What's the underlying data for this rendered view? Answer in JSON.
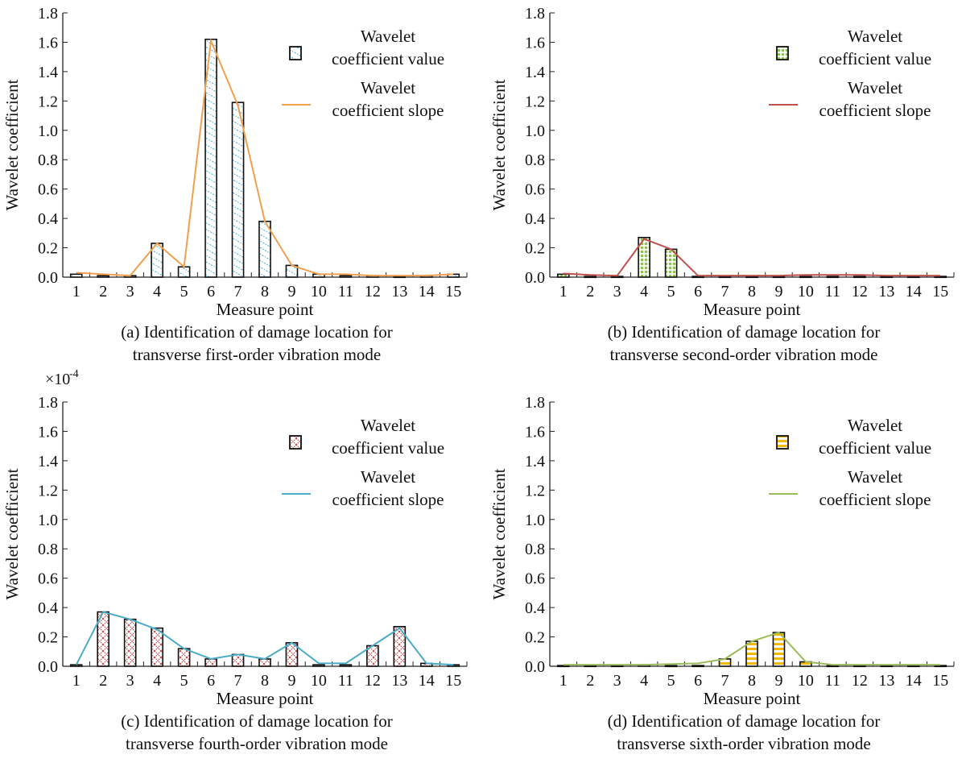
{
  "chart_data": [
    {
      "id": "a",
      "type": "bar",
      "caption_line1": "(a) Identification of damage location for",
      "caption_line2": "transverse first-order vibration mode",
      "xlabel": "Measure point",
      "ylabel": "Wavelet coefficient",
      "scale_label": "",
      "categories": [
        1,
        2,
        3,
        4,
        5,
        6,
        7,
        8,
        9,
        10,
        11,
        12,
        13,
        14,
        15
      ],
      "ylim": [
        0,
        1.8
      ],
      "yticks": [
        "0.0",
        "0.2",
        "0.4",
        "0.6",
        "0.8",
        "1.0",
        "1.2",
        "1.4",
        "1.6",
        "1.8"
      ],
      "pattern": "diagonal",
      "line_color": "#f0a050",
      "bar_accent": "#4ab0d8",
      "legend_bar": "Wavelet coefficient value",
      "legend_line": "Wavelet coefficient slope",
      "series": [
        {
          "kind": "bar",
          "values": [
            0.02,
            0.01,
            0.01,
            0.23,
            0.07,
            1.62,
            1.19,
            0.38,
            0.08,
            0.02,
            0.01,
            0.01,
            0.005,
            0.01,
            0.02
          ]
        },
        {
          "kind": "line",
          "values": [
            0.03,
            0.02,
            0.01,
            0.23,
            0.07,
            1.61,
            1.17,
            0.38,
            0.08,
            0.02,
            0.02,
            0.01,
            0.01,
            0.01,
            0.02
          ]
        }
      ]
    },
    {
      "id": "b",
      "type": "bar",
      "caption_line1": "(b) Identification of damage location for",
      "caption_line2": "transverse second-order vibration mode",
      "xlabel": "Measure point",
      "ylabel": "Wavelet coefficient",
      "scale_label": "",
      "categories": [
        1,
        2,
        3,
        4,
        5,
        6,
        7,
        8,
        9,
        10,
        11,
        12,
        13,
        14,
        15
      ],
      "ylim": [
        0,
        1.8
      ],
      "yticks": [
        "0.0",
        "0.2",
        "0.4",
        "0.6",
        "0.8",
        "1.0",
        "1.2",
        "1.4",
        "1.6",
        "1.8"
      ],
      "pattern": "dots",
      "line_color": "#c0504d",
      "bar_accent": "#8bc34a",
      "legend_bar": "Wavelet coefficient value",
      "legend_line": "Wavelet coefficient slope",
      "series": [
        {
          "kind": "bar",
          "values": [
            0.02,
            0.005,
            0.005,
            0.27,
            0.19,
            0.005,
            0.005,
            0.005,
            0.005,
            0.005,
            0.005,
            0.005,
            0.005,
            0.005,
            0.005
          ]
        },
        {
          "kind": "line",
          "values": [
            0.025,
            0.015,
            0.01,
            0.26,
            0.19,
            0.01,
            0.01,
            0.01,
            0.01,
            0.015,
            0.015,
            0.015,
            0.01,
            0.01,
            0.01
          ]
        }
      ]
    },
    {
      "id": "c",
      "type": "bar",
      "caption_line1": "(c) Identification of damage location for",
      "caption_line2": "transverse fourth-order vibration mode",
      "xlabel": "Measure point",
      "ylabel": "Wavelet coefficient",
      "scale_label": "×10",
      "scale_exp": "-4",
      "categories": [
        1,
        2,
        3,
        4,
        5,
        6,
        7,
        8,
        9,
        10,
        11,
        12,
        13,
        14,
        15
      ],
      "ylim": [
        0,
        1.8
      ],
      "yticks": [
        "0.0",
        "0.2",
        "0.4",
        "0.6",
        "0.8",
        "1.0",
        "1.2",
        "1.4",
        "1.6",
        "1.8"
      ],
      "pattern": "cross",
      "line_color": "#4bacc6",
      "bar_accent": "#c0504d",
      "legend_bar": "Wavelet coefficient value",
      "legend_line": "Wavelet coefficient slope",
      "series": [
        {
          "kind": "bar",
          "values": [
            0.01,
            0.37,
            0.32,
            0.26,
            0.12,
            0.05,
            0.08,
            0.05,
            0.16,
            0.01,
            0.01,
            0.14,
            0.27,
            0.02,
            0.01
          ]
        },
        {
          "kind": "line",
          "values": [
            0.01,
            0.37,
            0.32,
            0.25,
            0.12,
            0.05,
            0.08,
            0.05,
            0.16,
            0.02,
            0.02,
            0.14,
            0.26,
            0.02,
            0.01
          ]
        }
      ]
    },
    {
      "id": "d",
      "type": "bar",
      "caption_line1": "(d) Identification of damage location for",
      "caption_line2": "transverse sixth-order vibration mode",
      "xlabel": "Measure point",
      "ylabel": "Wavelet coefficient",
      "scale_label": "",
      "categories": [
        1,
        2,
        3,
        4,
        5,
        6,
        7,
        8,
        9,
        10,
        11,
        12,
        13,
        14,
        15
      ],
      "ylim": [
        0,
        1.8
      ],
      "yticks": [
        "0.0",
        "0.2",
        "0.4",
        "0.6",
        "0.8",
        "1.0",
        "1.2",
        "1.4",
        "1.6",
        "1.8"
      ],
      "pattern": "hstripes",
      "line_color": "#9bbb59",
      "bar_accent": "#f5b800",
      "legend_bar": "Wavelet coefficient value",
      "legend_line": "Wavelet coefficient slope",
      "series": [
        {
          "kind": "bar",
          "values": [
            0.005,
            0.005,
            0.005,
            0.01,
            0.005,
            0.005,
            0.05,
            0.17,
            0.23,
            0.03,
            0.005,
            0.005,
            0.005,
            0.005,
            0.005
          ]
        },
        {
          "kind": "line",
          "values": [
            0.01,
            0.01,
            0.01,
            0.01,
            0.015,
            0.02,
            0.05,
            0.17,
            0.23,
            0.03,
            0.01,
            0.01,
            0.01,
            0.01,
            0.01
          ]
        }
      ]
    }
  ]
}
